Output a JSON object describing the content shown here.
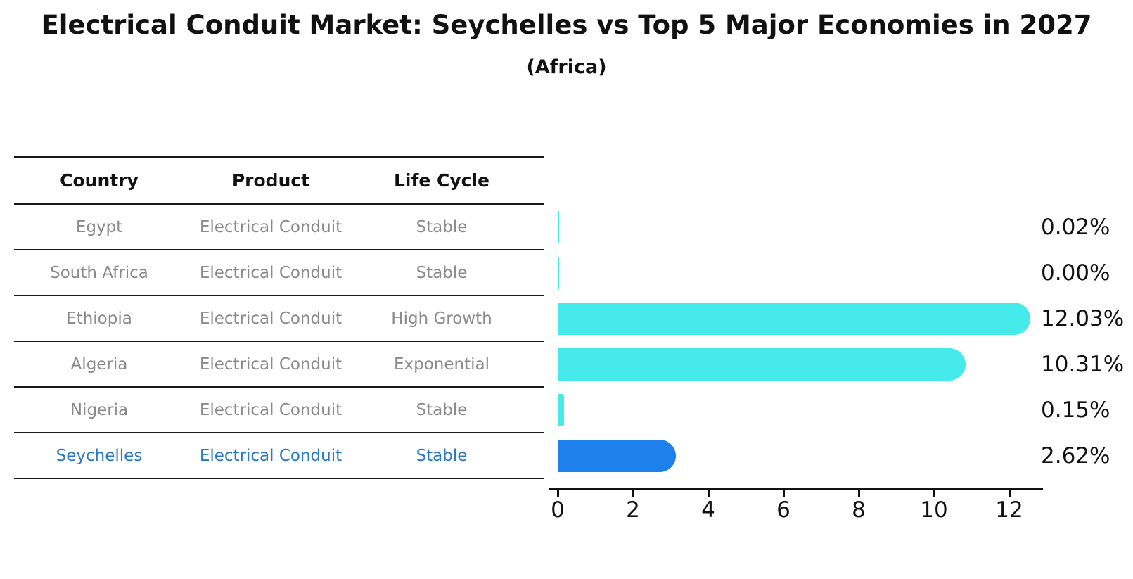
{
  "title": "Electrical Conduit Market: Seychelles vs Top 5 Major Economies in 2027",
  "subtitle": "(Africa)",
  "table": {
    "headers": [
      "Country",
      "Product",
      "Life Cycle"
    ],
    "rows": [
      {
        "country": "Egypt",
        "product": "Electrical Conduit",
        "life_cycle": "Stable",
        "value_label": "0.02%",
        "highlight": false
      },
      {
        "country": "South Africa",
        "product": "Electrical Conduit",
        "life_cycle": "Stable",
        "value_label": "0.00%",
        "highlight": false
      },
      {
        "country": "Ethiopia",
        "product": "Electrical Conduit",
        "life_cycle": "High Growth",
        "value_label": "12.03%",
        "highlight": false
      },
      {
        "country": "Algeria",
        "product": "Electrical Conduit",
        "life_cycle": "Exponential",
        "value_label": "10.31%",
        "highlight": false
      },
      {
        "country": "Nigeria",
        "product": "Electrical Conduit",
        "life_cycle": "Stable",
        "value_label": "0.15%",
        "highlight": false
      },
      {
        "country": "Seychelles",
        "product": "Electrical Conduit",
        "life_cycle": "Stable",
        "value_label": "2.62%",
        "highlight": true
      }
    ]
  },
  "chart_data": {
    "type": "bar",
    "orientation": "horizontal",
    "title": "Electrical Conduit Market: Seychelles vs Top 5 Major Economies in 2027",
    "subtitle": "(Africa)",
    "categories": [
      "Egypt",
      "South Africa",
      "Ethiopia",
      "Algeria",
      "Nigeria",
      "Seychelles"
    ],
    "values": [
      0.02,
      0.0,
      12.03,
      10.31,
      0.15,
      2.62
    ],
    "value_labels": [
      "0.02%",
      "0.00%",
      "12.03%",
      "10.31%",
      "0.15%",
      "2.62%"
    ],
    "xlabel": "",
    "ylabel": "",
    "xlim": [
      0,
      12.85
    ],
    "xticks": [
      0,
      2,
      4,
      6,
      8,
      10,
      12
    ],
    "grid": false,
    "legend": false,
    "highlight_index": 5
  },
  "colors": {
    "bar": "#47EAEA",
    "highlight_bar": "#1E80EB",
    "highlight_text": "#2878C8",
    "table_text": "#8A8A8A",
    "header_text": "#111111",
    "axis": "#111111"
  }
}
